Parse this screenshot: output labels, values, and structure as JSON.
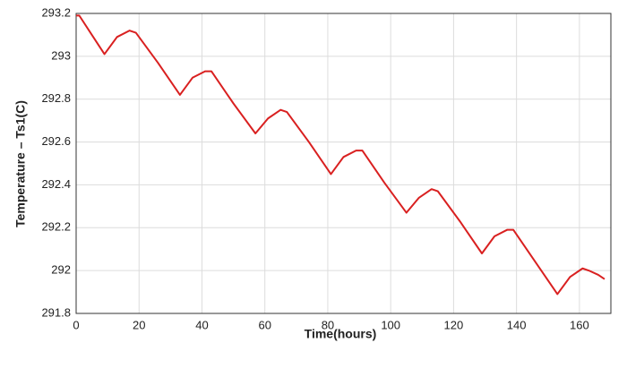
{
  "chart_data": {
    "type": "line",
    "x_label": "Time(hours)",
    "y_label": "Temperature – Ts1(C)",
    "x": [
      0,
      1,
      5,
      9,
      13,
      17,
      19,
      26,
      33,
      37,
      41,
      43,
      50,
      57,
      61,
      65,
      67,
      74,
      81,
      85,
      89,
      91,
      98,
      105,
      109,
      113,
      115,
      122,
      129,
      133,
      137,
      139,
      146,
      153,
      157,
      161,
      163,
      166,
      168
    ],
    "values": [
      293.19,
      293.19,
      293.1,
      293.01,
      293.09,
      293.12,
      293.11,
      292.97,
      292.82,
      292.9,
      292.93,
      292.93,
      292.78,
      292.64,
      292.71,
      292.75,
      292.74,
      292.6,
      292.45,
      292.53,
      292.56,
      292.56,
      292.41,
      292.27,
      292.34,
      292.38,
      292.37,
      292.23,
      292.08,
      292.16,
      292.19,
      292.19,
      292.04,
      291.89,
      291.97,
      292.01,
      292.0,
      291.98,
      291.96
    ],
    "color": "#d92020",
    "xlim": [
      0,
      170
    ],
    "xticks": [
      0,
      20,
      40,
      60,
      80,
      100,
      120,
      140,
      160
    ],
    "ylim": [
      291.8,
      293.2
    ],
    "yticks": [
      291.8,
      292,
      292.2,
      292.4,
      292.6,
      292.8,
      293,
      293.2
    ],
    "grid": true
  }
}
